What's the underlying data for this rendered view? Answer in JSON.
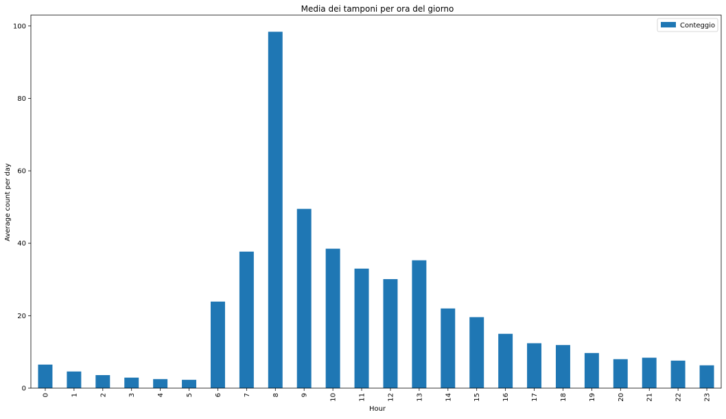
{
  "chart_data": {
    "type": "bar",
    "title": "Media dei tamponi per ora del giorno",
    "xlabel": "Hour",
    "ylabel": "Average count per day",
    "categories": [
      "0",
      "1",
      "2",
      "3",
      "4",
      "5",
      "6",
      "7",
      "8",
      "9",
      "10",
      "11",
      "12",
      "13",
      "14",
      "15",
      "16",
      "17",
      "18",
      "19",
      "20",
      "21",
      "22",
      "23"
    ],
    "series": [
      {
        "name": "Conteggio",
        "color": "#1f77b4",
        "values": [
          6.5,
          4.6,
          3.6,
          2.9,
          2.5,
          2.3,
          23.9,
          37.7,
          98.4,
          49.5,
          38.5,
          33.0,
          30.1,
          35.3,
          22.0,
          19.6,
          15.0,
          12.4,
          11.9,
          9.7,
          8.0,
          8.4,
          7.6,
          6.3
        ]
      }
    ],
    "ylim": [
      0,
      103
    ],
    "yticks": [
      0,
      20,
      40,
      60,
      80,
      100
    ],
    "grid": false,
    "legend_position": "top-right"
  }
}
